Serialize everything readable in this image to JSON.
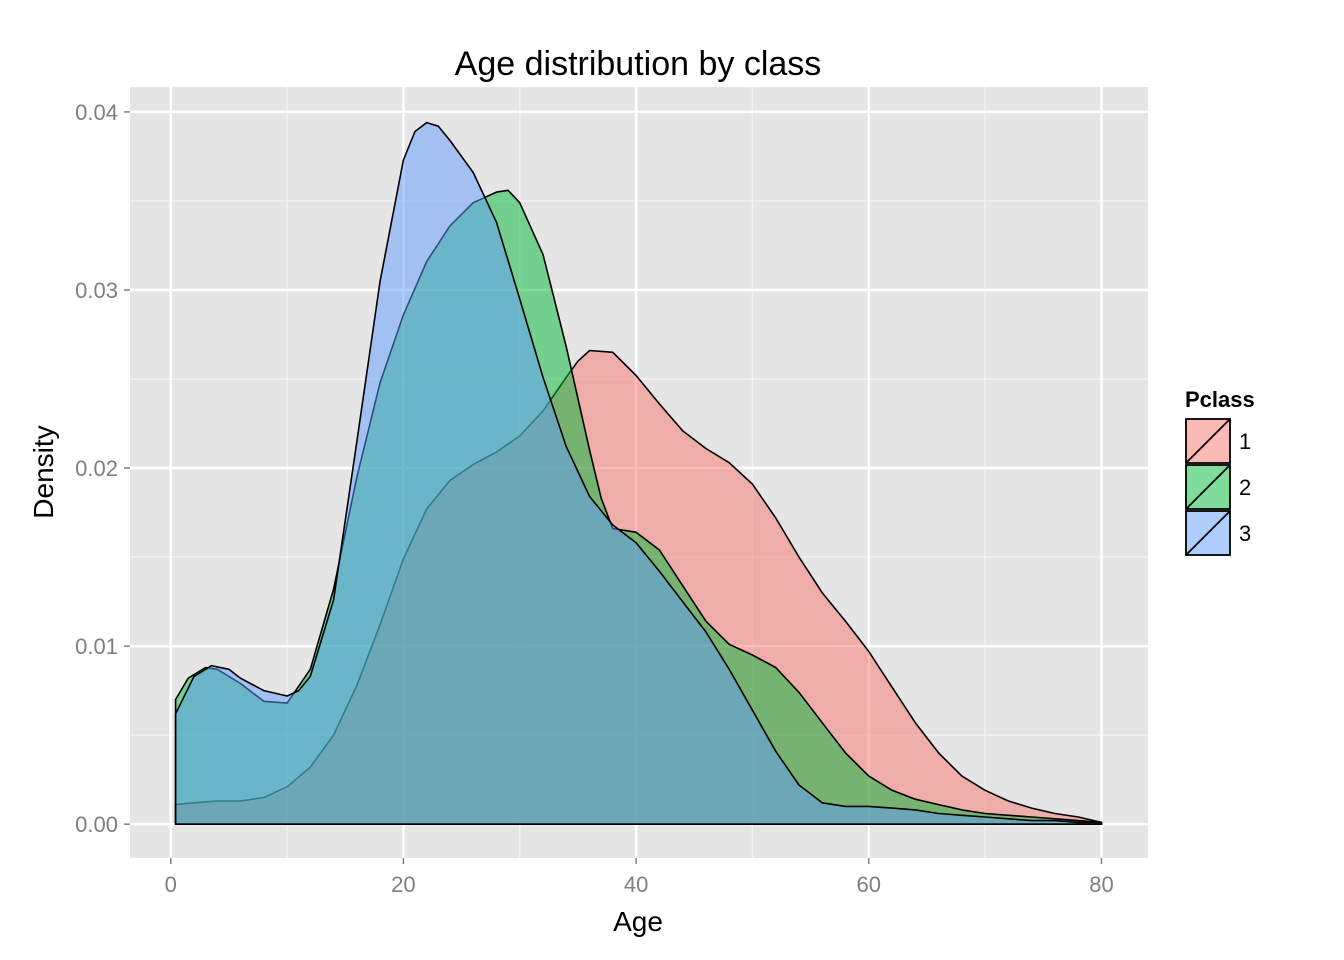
{
  "chart_data": {
    "type": "area",
    "title": "Age distribution by class",
    "xlabel": "Age",
    "ylabel": "Density",
    "xlim": [
      -3.5,
      84
    ],
    "ylim": [
      -0.0019,
      0.0414
    ],
    "xticks": [
      0,
      20,
      40,
      60,
      80
    ],
    "xtick_labels": [
      "0",
      "20",
      "40",
      "60",
      "80"
    ],
    "yticks": [
      0,
      0.01,
      0.02,
      0.03,
      0.04
    ],
    "ytick_labels": [
      "0.00",
      "0.01",
      "0.02",
      "0.03",
      "0.04"
    ],
    "grid": true,
    "legend": {
      "title": "Pclass",
      "position": "right"
    },
    "series": [
      {
        "name": "1",
        "color": "#f8766d",
        "x": [
          0.42,
          2,
          4,
          6,
          8,
          10,
          12,
          14,
          16,
          18,
          20,
          22,
          24,
          26,
          28,
          30,
          32,
          34,
          35,
          36,
          38,
          40,
          42,
          44,
          46,
          48,
          50,
          52,
          54,
          56,
          58,
          60,
          62,
          64,
          66,
          68,
          70,
          72,
          74,
          76,
          78,
          80
        ],
        "y": [
          0.0011,
          0.0012,
          0.0013,
          0.0013,
          0.0015,
          0.0021,
          0.0032,
          0.005,
          0.0078,
          0.0112,
          0.0149,
          0.0177,
          0.0193,
          0.0202,
          0.0209,
          0.0218,
          0.0232,
          0.0251,
          0.026,
          0.0266,
          0.0265,
          0.0252,
          0.0236,
          0.0221,
          0.0211,
          0.0203,
          0.0191,
          0.0172,
          0.015,
          0.013,
          0.0114,
          0.0097,
          0.0077,
          0.0057,
          0.004,
          0.0027,
          0.0019,
          0.0013,
          0.0009,
          0.0006,
          0.0004,
          0.0001
        ]
      },
      {
        "name": "2",
        "color": "#00ba38",
        "x": [
          0.42,
          1.5,
          3,
          4,
          6,
          8,
          10,
          12,
          14,
          16,
          18,
          20,
          22,
          24,
          26,
          28,
          29,
          30,
          32,
          34,
          36,
          37,
          38,
          40,
          42,
          44,
          46,
          48,
          50,
          52,
          54,
          56,
          58,
          60,
          62,
          64,
          66,
          68,
          70,
          72,
          74,
          76,
          78,
          80
        ],
        "y": [
          0.007,
          0.0082,
          0.0088,
          0.0087,
          0.0079,
          0.0069,
          0.0068,
          0.0087,
          0.0132,
          0.0195,
          0.0248,
          0.0286,
          0.0316,
          0.0336,
          0.0349,
          0.0355,
          0.0356,
          0.0349,
          0.032,
          0.0268,
          0.021,
          0.0183,
          0.0166,
          0.0164,
          0.0154,
          0.0134,
          0.0114,
          0.0101,
          0.0095,
          0.0088,
          0.0074,
          0.0057,
          0.004,
          0.0027,
          0.0019,
          0.0014,
          0.0011,
          0.0008,
          0.0006,
          0.0005,
          0.0004,
          0.0003,
          0.0002,
          0.0001
        ]
      },
      {
        "name": "3",
        "color": "#619cff",
        "x": [
          0.42,
          2,
          3.5,
          5,
          6,
          8,
          10,
          11,
          12,
          14,
          16,
          18,
          20,
          21,
          22,
          23,
          24,
          26,
          28,
          30,
          32,
          34,
          36,
          38,
          40,
          42,
          44,
          46,
          48,
          50,
          52,
          54,
          56,
          58,
          60,
          62,
          64,
          66,
          68,
          70,
          72,
          74,
          76,
          78,
          80
        ],
        "y": [
          0.0062,
          0.0083,
          0.0089,
          0.0087,
          0.0082,
          0.0075,
          0.0072,
          0.0075,
          0.0083,
          0.0126,
          0.0215,
          0.0305,
          0.0373,
          0.0389,
          0.0394,
          0.0392,
          0.0384,
          0.0366,
          0.0338,
          0.0295,
          0.0251,
          0.0212,
          0.0184,
          0.0168,
          0.0158,
          0.0142,
          0.0125,
          0.0108,
          0.0087,
          0.0064,
          0.0041,
          0.0022,
          0.0012,
          0.001,
          0.001,
          0.0009,
          0.0008,
          0.0006,
          0.0005,
          0.0004,
          0.0003,
          0.0002,
          0.0002,
          0.0001,
          0.0001
        ]
      }
    ]
  }
}
